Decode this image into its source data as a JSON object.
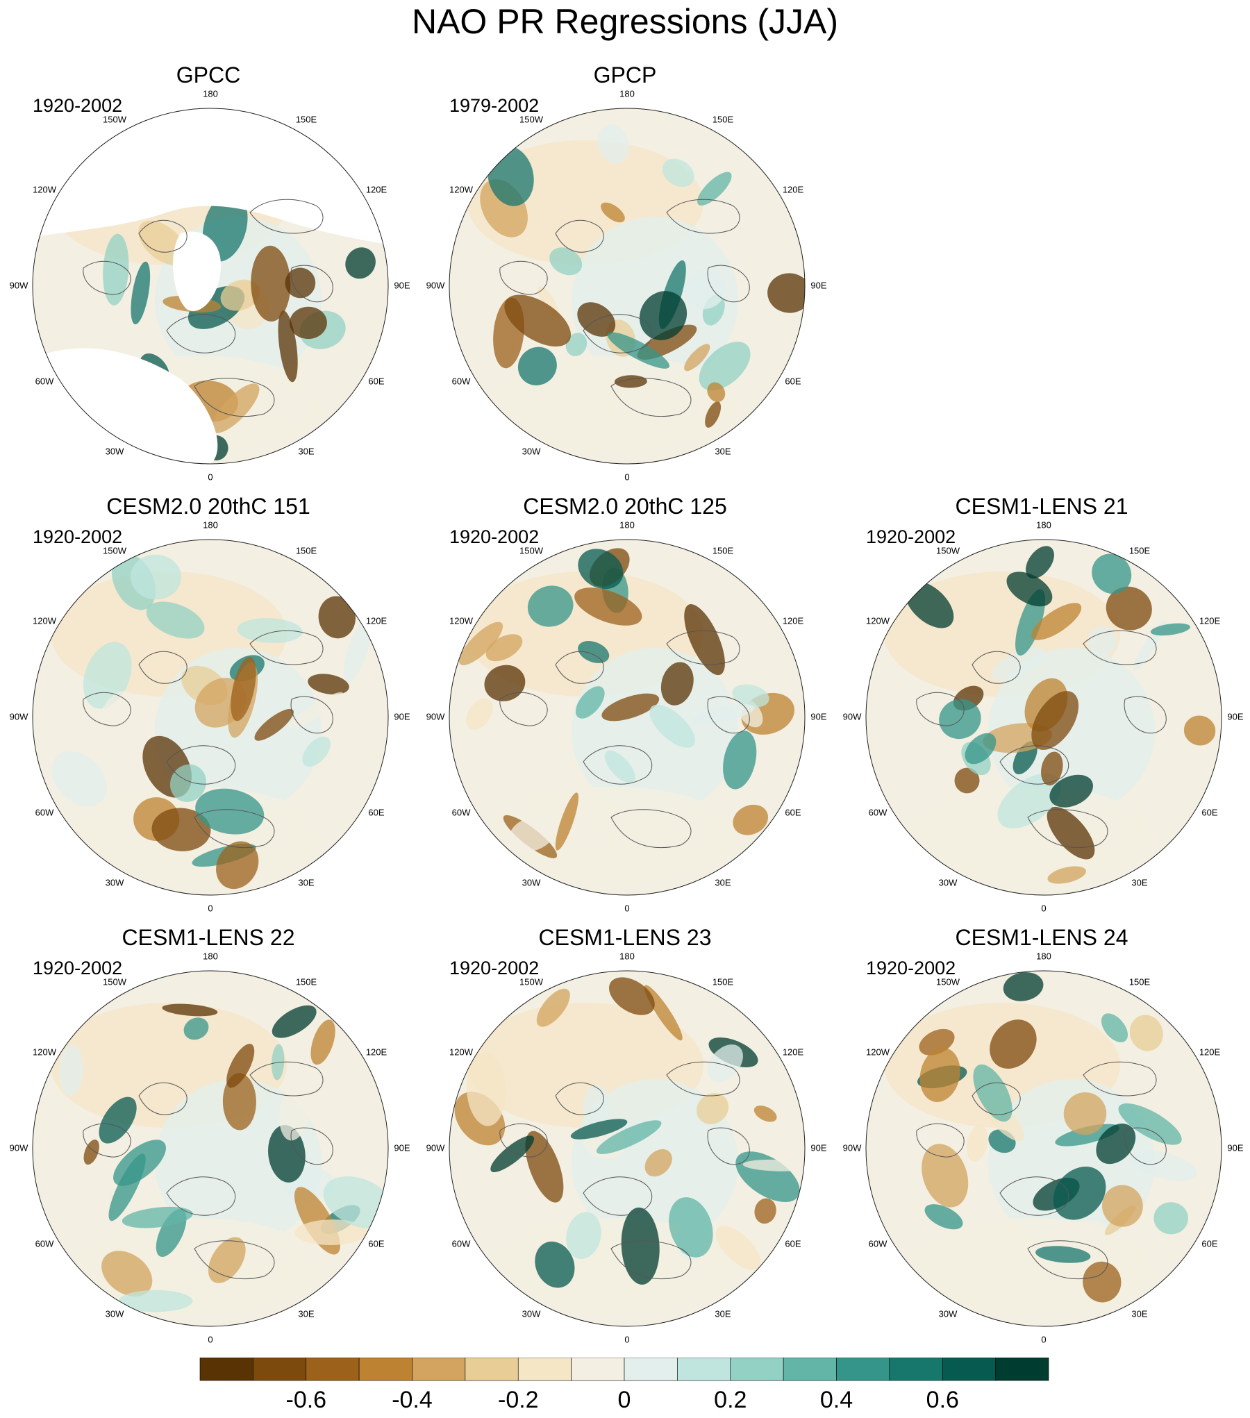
{
  "title": "NAO PR Regressions (JJA)",
  "lon_labels": [
    "180",
    "150E",
    "120E",
    "90E",
    "60E",
    "30E",
    "0",
    "30W",
    "60W",
    "90W",
    "120W",
    "150W"
  ],
  "panels": [
    {
      "title": "GPCC",
      "period": "1920-2002",
      "dataset": "gpcc"
    },
    {
      "title": "GPCP",
      "period": "1979-2002",
      "dataset": "full"
    },
    {
      "title": "CESM2.0 20thC 151",
      "period": "1920-2002",
      "dataset": "full"
    },
    {
      "title": "CESM2.0 20thC 125",
      "period": "1920-2002",
      "dataset": "full"
    },
    {
      "title": "CESM1-LENS 21",
      "period": "1920-2002",
      "dataset": "full"
    },
    {
      "title": "CESM1-LENS 22",
      "period": "1920-2002",
      "dataset": "full"
    },
    {
      "title": "CESM1-LENS 23",
      "period": "1920-2002",
      "dataset": "full"
    },
    {
      "title": "CESM1-LENS 24",
      "period": "1920-2002",
      "dataset": "full"
    }
  ],
  "colorbar": {
    "colors": [
      "#5a3305",
      "#7d4a0e",
      "#9c621c",
      "#bd8332",
      "#d3a45f",
      "#e8cd97",
      "#f5e6c6",
      "#f3efe2",
      "#e2efec",
      "#bfe5de",
      "#93d1c4",
      "#62b5a7",
      "#35958a",
      "#18776d",
      "#075a4f",
      "#003c30"
    ],
    "tick_labels": [
      "-0.6",
      "-0.4",
      "-0.2",
      "0",
      "0.2",
      "0.4",
      "0.6"
    ]
  },
  "colors": {
    "coastline": "#555555",
    "rim": "#222222",
    "land_missing": "#ffffff"
  }
}
